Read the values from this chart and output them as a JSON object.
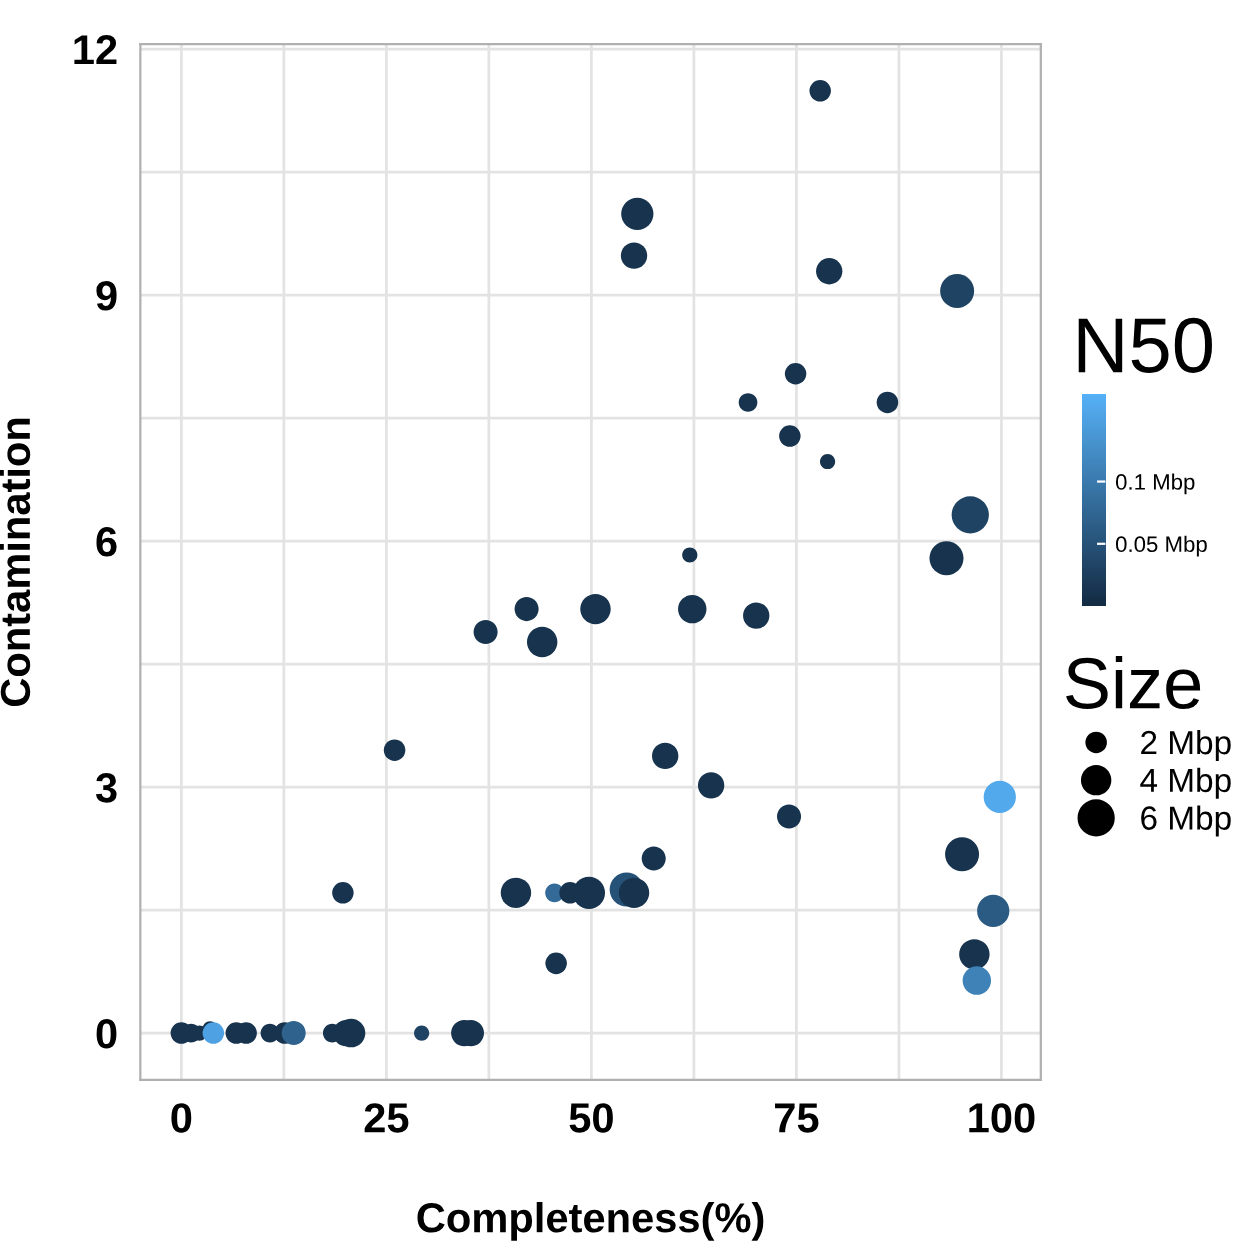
{
  "chart_data": {
    "type": "bubble",
    "xlabel": "Completeness(%)",
    "ylabel": "Contamination",
    "clabel": "N50",
    "legend_title": "Size",
    "x": [
      77.9,
      55.6,
      55.2,
      79.0,
      94.6,
      74.9,
      69.1,
      86.1,
      74.2,
      78.8,
      96.2,
      62.0,
      93.3,
      42.1,
      50.5,
      62.3,
      37.1,
      44.0,
      70.1,
      26.0,
      59.0,
      64.6,
      99.8,
      74.1,
      95.2,
      57.6,
      19.7,
      40.8,
      45.5,
      47.4,
      49.7,
      54.3,
      55.2,
      99.0,
      96.7,
      97.0,
      45.7,
      0.0,
      1.2,
      2.2,
      3.5,
      3.9,
      6.7,
      7.9,
      10.8,
      12.6,
      13.7,
      18.4,
      20.1,
      20.7,
      29.3,
      34.5,
      35.3
    ],
    "values": [
      11.49,
      9.99,
      9.48,
      9.29,
      9.05,
      8.04,
      7.69,
      7.69,
      7.28,
      6.97,
      6.32,
      5.83,
      5.79,
      5.17,
      5.17,
      5.17,
      4.89,
      4.77,
      5.09,
      3.45,
      3.38,
      3.02,
      2.88,
      2.64,
      2.18,
      2.13,
      1.71,
      1.71,
      1.71,
      1.71,
      1.71,
      1.75,
      1.71,
      1.49,
      0.96,
      0.64,
      0.85,
      0,
      0,
      0,
      0.05,
      0,
      0,
      0,
      0,
      0,
      0,
      0,
      0,
      0,
      0,
      0,
      0
    ],
    "sizes": [
      2,
      4.5,
      3,
      3,
      5,
      2,
      1.5,
      2,
      2,
      1,
      6,
      1,
      5,
      2.5,
      4,
      3.5,
      2.5,
      4,
      3,
      2,
      3,
      3,
      4.5,
      2.5,
      5,
      2.5,
      2,
      4,
      1.5,
      2,
      4.5,
      5,
      4,
      4.5,
      4,
      3.5,
      2,
      2,
      1.5,
      1,
      1,
      2,
      2,
      2,
      1.5,
      2,
      2.5,
      1.5,
      3,
      3.5,
      1,
      3,
      3
    ],
    "cvalues": [
      0.01,
      0.01,
      0.01,
      0.01,
      0.03,
      0.01,
      0.01,
      0.01,
      0.01,
      0.01,
      0.03,
      0.01,
      0.01,
      0.01,
      0.01,
      0.01,
      0.01,
      0.01,
      0.01,
      0.01,
      0.01,
      0.01,
      0.16,
      0.01,
      0.01,
      0.01,
      0.01,
      0.01,
      0.08,
      0.01,
      0.01,
      0.05,
      0.01,
      0.06,
      0.01,
      0.11,
      0.01,
      0.01,
      0.01,
      0.01,
      0.01,
      0.15,
      0.01,
      0.01,
      0.01,
      0.01,
      0.07,
      0.01,
      0.01,
      0.01,
      0.03,
      0.01,
      0.01
    ],
    "size_legend": [
      {
        "value": 2,
        "label": "2 Mbp"
      },
      {
        "value": 4,
        "label": "4 Mbp"
      },
      {
        "value": 6,
        "label": "6 Mbp"
      }
    ],
    "clim": [
      0,
      0.17
    ],
    "cticks": [
      {
        "value": 0.05,
        "label": "0.05 Mbp"
      },
      {
        "value": 0.1,
        "label": "0.1 Mbp"
      }
    ],
    "xlim": [
      -5,
      104.8
    ],
    "ylim": [
      -0.57,
      12.06
    ],
    "xticks": [
      0,
      {
        "value": 12.5,
        "label": null
      },
      25,
      {
        "value": 37.5,
        "label": null
      },
      50,
      {
        "value": 62.5,
        "label": null
      },
      75,
      {
        "value": 87.5,
        "label": null
      },
      100
    ],
    "yticks": [
      0,
      {
        "value": 1.5,
        "label": null
      },
      3,
      {
        "value": 4.5,
        "label": null
      },
      6,
      {
        "value": 7.5,
        "label": null
      },
      9,
      {
        "value": 10.5,
        "label": null
      },
      12
    ],
    "grid": true,
    "marker": "circle"
  }
}
